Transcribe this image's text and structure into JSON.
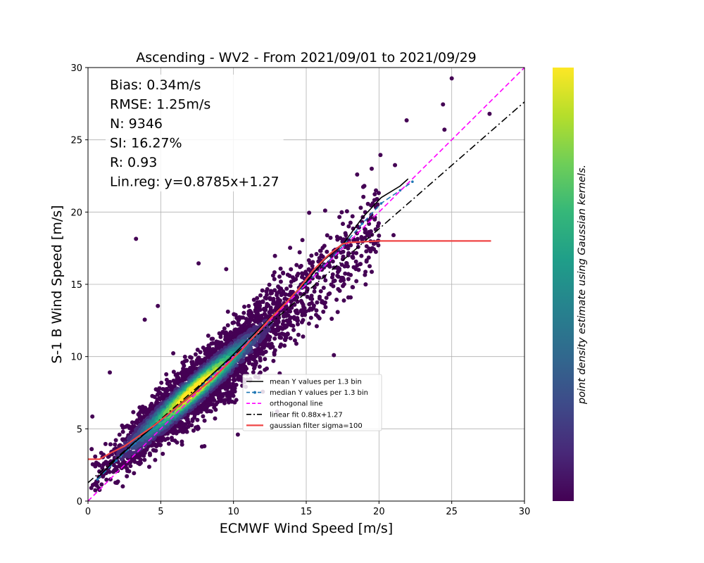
{
  "chart_data": {
    "type": "scatter",
    "title": "Ascending - WV2 - From 2021/09/01 to 2021/09/29",
    "xlabel": "ECMWF Wind Speed [m/s]",
    "ylabel": "S-1 B Wind Speed [m/s]",
    "xlim": [
      0,
      30
    ],
    "ylim": [
      0,
      30
    ],
    "xticks": [
      0,
      5,
      10,
      15,
      20,
      25,
      30
    ],
    "yticks": [
      0,
      5,
      10,
      15,
      20,
      25,
      30
    ],
    "grid": true,
    "legend_position": "center-right",
    "stats": [
      "Bias: 0.34m/s",
      "RMSE: 1.25m/s",
      "N: 9346",
      "SI: 16.27%",
      "R: 0.93",
      "Lin.reg: y=0.8785x+1.27"
    ],
    "colorbar_label": "point density estimate using Gaussian kernels.",
    "colormap": [
      "#440154",
      "#482878",
      "#3e4a89",
      "#31688e",
      "#26828e",
      "#1f9e89",
      "#35b779",
      "#6ece58",
      "#b5de2b",
      "#fde725"
    ],
    "scatter_color_default": "#440154",
    "n_points": 9346,
    "regression": {
      "slope": 0.8785,
      "intercept": 1.27
    },
    "outliers": [
      [
        3.3,
        18.15
      ],
      [
        25.0,
        29.25
      ],
      [
        24.4,
        27.45
      ],
      [
        27.6,
        26.8
      ],
      [
        21.9,
        26.35
      ],
      [
        24.5,
        25.7
      ],
      [
        20.1,
        23.95
      ],
      [
        21.1,
        23.25
      ],
      [
        19.5,
        23.0
      ],
      [
        18.5,
        22.6
      ],
      [
        15.2,
        19.95
      ],
      [
        16.3,
        20.1
      ],
      [
        17.8,
        20.05
      ],
      [
        21.0,
        18.4
      ],
      [
        9.5,
        16.05
      ],
      [
        7.6,
        16.45
      ],
      [
        3.9,
        12.55
      ],
      [
        4.8,
        13.5
      ],
      [
        10.3,
        4.6
      ],
      [
        0.3,
        5.85
      ],
      [
        0.25,
        3.6
      ],
      [
        0.5,
        0.75
      ],
      [
        8.0,
        3.8
      ],
      [
        1.5,
        8.9
      ],
      [
        13.0,
        6.2
      ],
      [
        16.9,
        10.1
      ]
    ],
    "series": [
      {
        "name": "mean Y values per 1.3 bin",
        "color": "#000000",
        "style": "solid",
        "x": [
          0.65,
          1.95,
          3.25,
          4.55,
          5.85,
          7.15,
          8.45,
          9.75,
          11.05,
          12.35,
          13.65,
          14.95,
          16.25,
          17.55,
          18.85,
          20.15,
          21.45,
          22.0
        ],
        "y": [
          1.6,
          2.9,
          4.1,
          5.2,
          6.3,
          7.4,
          8.7,
          9.9,
          11.2,
          12.5,
          13.8,
          15.1,
          16.7,
          17.8,
          19.6,
          21.0,
          21.8,
          22.3
        ]
      },
      {
        "name": "median Y values per 1.3 bin",
        "color": "#1f77b4",
        "style": "dashed",
        "x": [
          0.65,
          1.95,
          3.25,
          4.55,
          5.85,
          7.15,
          8.45,
          9.75,
          11.05,
          12.35,
          13.65,
          14.95,
          16.25,
          17.55,
          18.85,
          20.15,
          21.45,
          22.3
        ],
        "y": [
          1.5,
          2.8,
          4.0,
          5.1,
          6.2,
          7.3,
          8.6,
          9.8,
          11.1,
          12.4,
          13.7,
          15.0,
          16.3,
          17.7,
          19.2,
          20.6,
          21.5,
          22.1
        ]
      },
      {
        "name": "orthogonal line",
        "color": "#ff00ff",
        "style": "dashed",
        "x": [
          0,
          30
        ],
        "y": [
          0,
          30
        ]
      },
      {
        "name": "linear fit 0.88x+1.27",
        "color": "#000000",
        "style": "dashdot",
        "x": [
          0,
          30
        ],
        "y": [
          1.27,
          27.625
        ]
      },
      {
        "name": "gaussian filter sigma=100",
        "color": "#ef4545",
        "style": "solid",
        "x": [
          0,
          0.8,
          1.5,
          2.5,
          3.5,
          4.5,
          5.5,
          6.5,
          7.5,
          8.5,
          9.5,
          10.5,
          11.5,
          12.5,
          13.5,
          14.5,
          15.5,
          16.5,
          17.0,
          17.5,
          18.0,
          19.0,
          20.0,
          21.0,
          22.0,
          25.0,
          27.7
        ],
        "y": [
          2.9,
          2.9,
          3.3,
          3.8,
          4.5,
          5.2,
          6.0,
          6.8,
          7.6,
          8.4,
          9.4,
          10.4,
          11.5,
          12.6,
          13.6,
          14.7,
          16.0,
          17.0,
          17.4,
          17.8,
          17.9,
          17.95,
          18.0,
          18.0,
          18.0,
          18.0,
          18.0
        ]
      }
    ]
  }
}
